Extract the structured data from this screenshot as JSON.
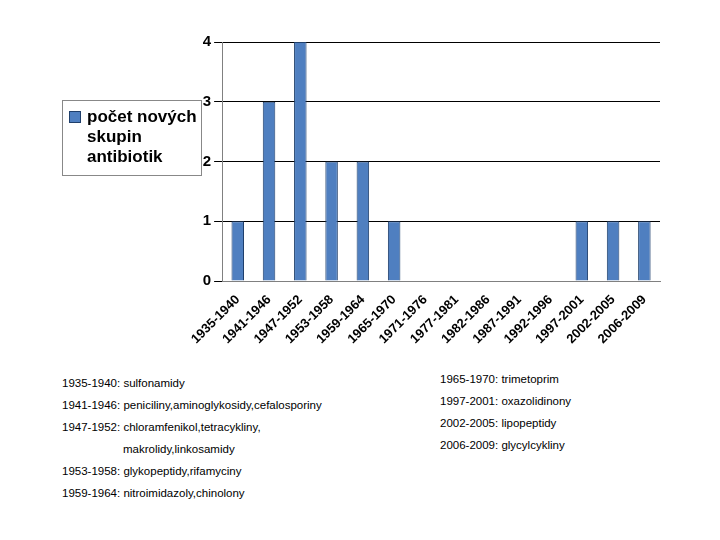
{
  "chart_data": {
    "type": "bar",
    "categories": [
      "1935-1940",
      "1941-1946",
      "1947-1952",
      "1953-1958",
      "1959-1964",
      "1965-1970",
      "1971-1976",
      "1977-1981",
      "1982-1986",
      "1987-1991",
      "1992-1996",
      "1997-2001",
      "2002-2005",
      "2006-2009"
    ],
    "series": [
      {
        "name": "počet nových skupin antibiotik",
        "color": "#4f7fc0",
        "values": [
          1,
          3,
          4,
          2,
          2,
          1,
          0,
          0,
          0,
          0,
          0,
          1,
          1,
          1
        ]
      }
    ],
    "ylim": [
      0,
      4
    ],
    "yticks": [
      0,
      1,
      2,
      3,
      4
    ],
    "grid": true,
    "legend": "left",
    "annotations": [
      {
        "period": "1935-1940:",
        "lines": [
          "sulfonamidy"
        ]
      },
      {
        "period": "1941-1946:",
        "lines": [
          "peniciliny,aminoglykosidy,cefalosporiny"
        ]
      },
      {
        "period": "1947-1952:",
        "lines": [
          "chloramfenikol,tetracykliny,",
          "makrolidy,linkosamidy"
        ]
      },
      {
        "period": "1953-1958:",
        "lines": [
          "glykopeptidy,rifamyciny"
        ]
      },
      {
        "period": "1959-1964:",
        "lines": [
          "nitroimidazoly,chinolony"
        ]
      },
      {
        "period": "1965-1970:",
        "lines": [
          "trimetoprim"
        ]
      },
      {
        "period": "1997-2001:",
        "lines": [
          "oxazolidinony"
        ]
      },
      {
        "period": "2002-2005:",
        "lines": [
          "lipopeptidy"
        ]
      },
      {
        "period": "2006-2009:",
        "lines": [
          "glycylcykliny"
        ]
      }
    ]
  }
}
